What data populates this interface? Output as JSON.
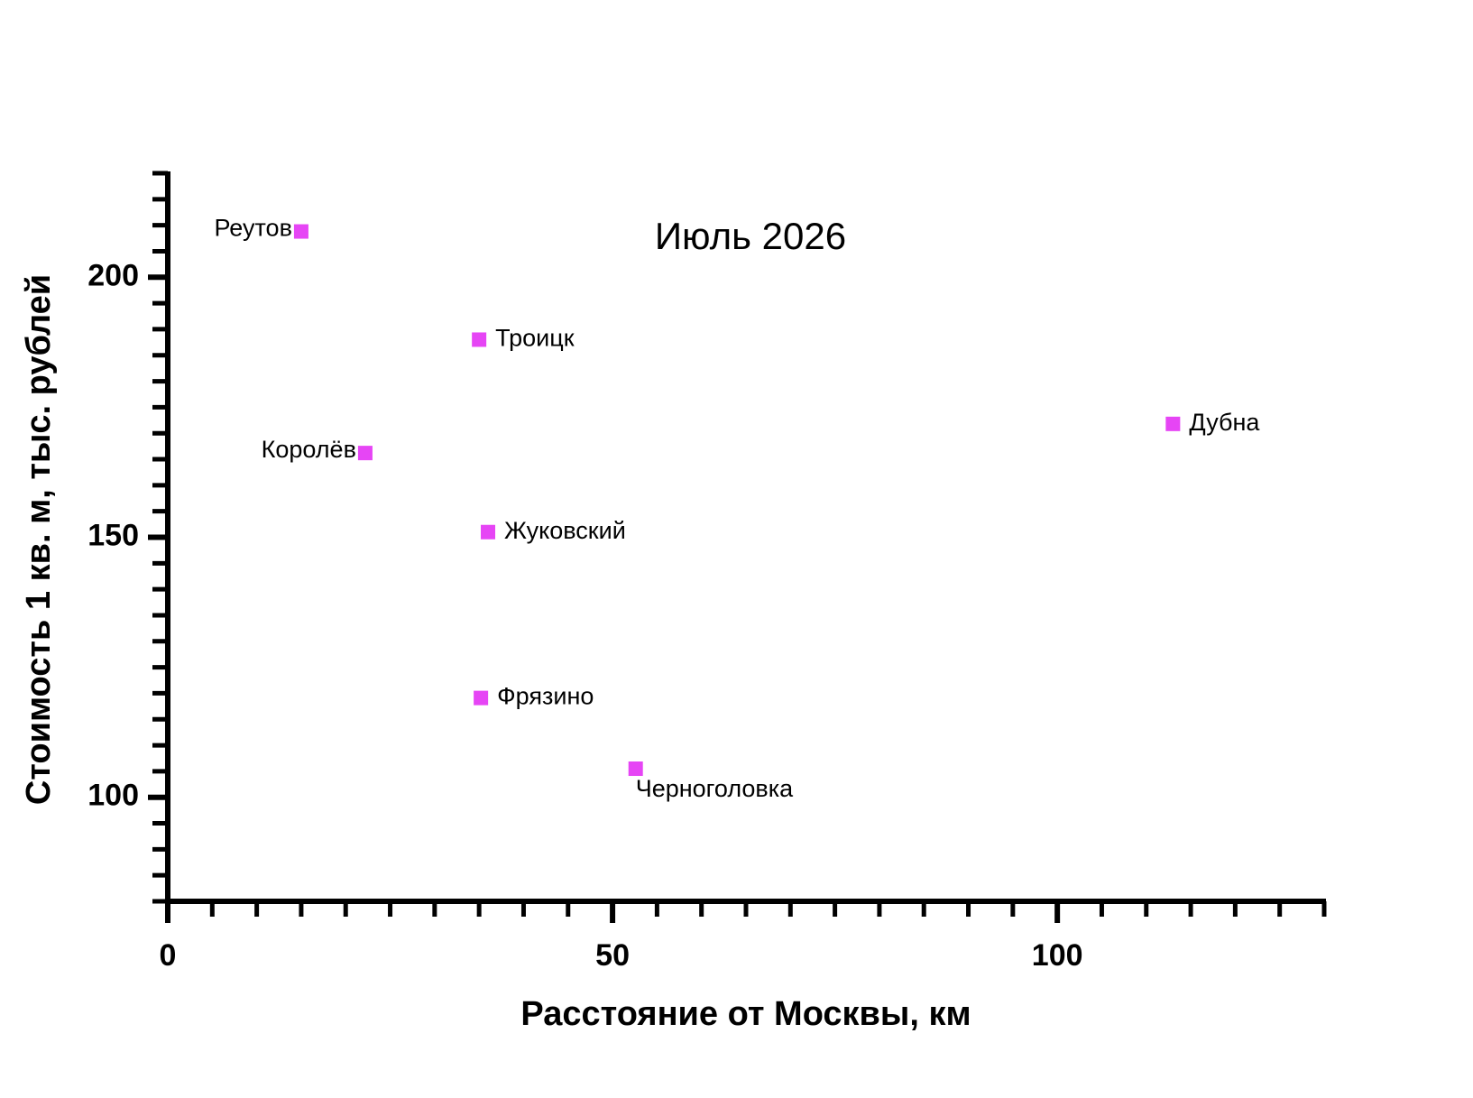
{
  "chart_data": {
    "type": "scatter",
    "title": "Июль 2026",
    "x_label": "Расстояние от Москвы, км",
    "y_label": "Стоимость 1 кв. м, тыс. рублей",
    "labels": [
      "Реутов",
      "Троицк",
      "Королёв",
      "Жуковский",
      "Фрязино",
      "Черноголовка",
      "Дубна"
    ],
    "x": [
      15,
      35,
      22.2,
      36,
      35.2,
      52.6,
      113
    ],
    "values": [
      208.8,
      188,
      166.2,
      151,
      119.1,
      105.5,
      171.8
    ],
    "color": "#e645f5",
    "xlim": [
      0,
      130
    ],
    "xticks": [
      0,
      50,
      100
    ],
    "ylim": [
      80,
      220
    ],
    "yticks": [
      100,
      150,
      200
    ]
  }
}
